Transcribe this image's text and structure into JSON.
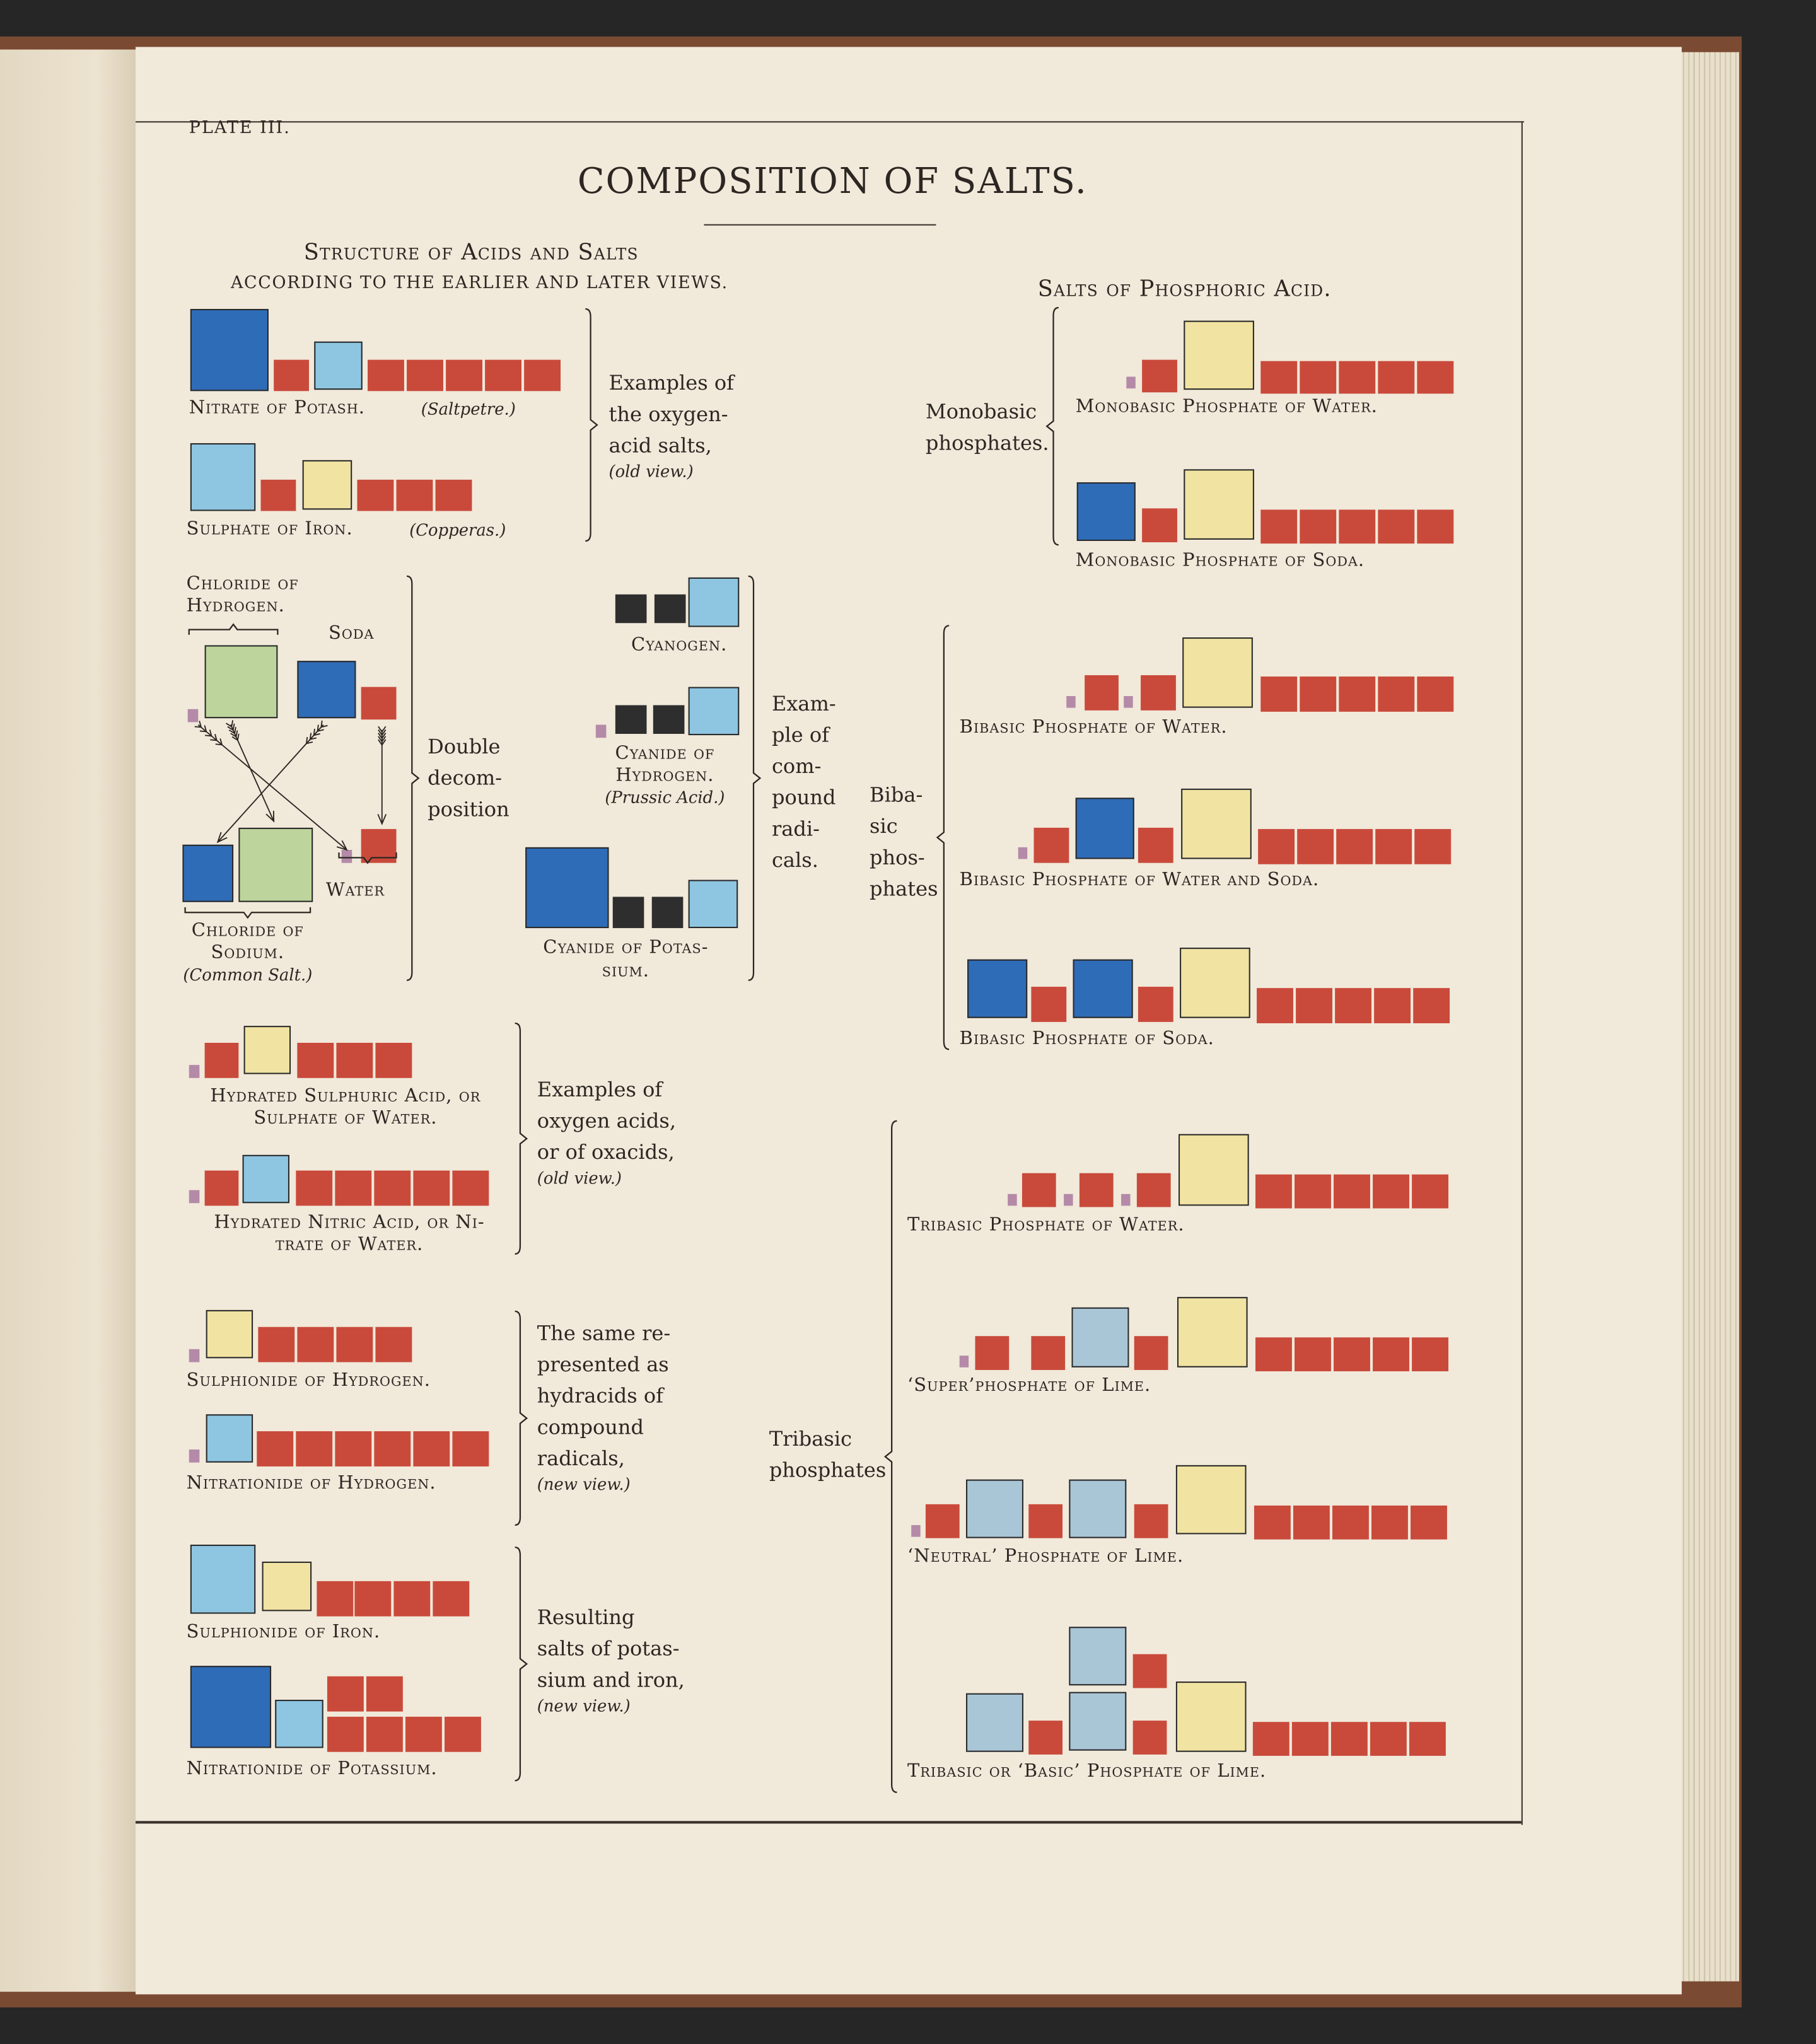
{
  "plate": "PLATE III.",
  "title": "COMPOSITION OF SALTS.",
  "left_header": {
    "line1": "Structure of Acids and Salts",
    "line2": "ACCORDING TO THE EARLIER AND LATER VIEWS."
  },
  "right_header": "Salts of Phosphoric Acid.",
  "colors": {
    "dark_blue": "#2f6cb8",
    "light_blue": "#8ec6e2",
    "red": "#c94a3b",
    "yellow": "#f1e3a2",
    "green": "#bdd59c",
    "black": "#2e2e2e",
    "purple": "#b48aa8",
    "grey_blue": "#a9c6d6"
  },
  "labels": {
    "nitrate_potash": "Nitrate of Potash.",
    "saltpetre": "(Saltpetre.)",
    "sulphate_iron": "Sulphate of Iron.",
    "copperas": "(Copperas.)",
    "oxygen_acid_salts": [
      "Examples of",
      "the oxygen-",
      "acid salts,",
      "(old view.)"
    ],
    "chloride_hydrogen": [
      "Chloride of",
      "Hydrogen."
    ],
    "soda": "Soda",
    "water": "Water",
    "chloride_sodium": [
      "Chloride of",
      "Sodium.",
      "(Common Salt.)"
    ],
    "double_decomposition": [
      "Double",
      "decom-",
      "position"
    ],
    "cyanogen": "Cyanogen.",
    "cyanide_hydrogen": [
      "Cyanide of",
      "Hydrogen.",
      "(Prussic Acid.)"
    ],
    "cyanide_potassium": [
      "Cyanide of Potas-",
      "sium."
    ],
    "compound_radicals": [
      "Exam-",
      "ple of",
      "com-",
      "pound",
      "radi-",
      "cals."
    ],
    "hydrated_sulphuric": [
      "Hydrated Sulphuric Acid, or",
      "Sulphate of Water."
    ],
    "hydrated_nitric": [
      "Hydrated Nitric Acid, or Ni-",
      "trate of Water."
    ],
    "oxacids": [
      "Examples of",
      "oxygen acids,",
      "or of oxacids,",
      "(old view.)"
    ],
    "sulphionide_hydrogen": "Sulphionide of Hydrogen.",
    "nitrationide_hydrogen": "Nitrationide of Hydrogen.",
    "hydracids": [
      "The same re-",
      "presented as",
      "hydracids of",
      "compound",
      "radicals,",
      "(new view.)"
    ],
    "sulphionide_iron": "Sulphionide of Iron.",
    "nitrationide_potassium": "Nitrationide of Potassium.",
    "resulting_salts": [
      "Resulting",
      "salts of potas-",
      "sium and iron,",
      "(new view.)"
    ],
    "monobasic": [
      "Monobasic",
      "phosphates."
    ],
    "mono_water": "Monobasic Phosphate of Water.",
    "mono_soda": "Monobasic Phosphate of Soda.",
    "bibasic": [
      "Biba-",
      "sic",
      "phos-",
      "phates"
    ],
    "bi_water": "Bibasic Phosphate of Water.",
    "bi_water_soda": "Bibasic Phosphate of Water and Soda.",
    "bi_soda": "Bibasic Phosphate of Soda.",
    "tribasic": [
      "Tribasic",
      "phosphates"
    ],
    "tri_water": "Tribasic Phosphate of Water.",
    "superphosphate": "‘Super’phosphate of Lime.",
    "neutral": "‘Neutral’ Phosphate of Lime.",
    "basic": "Tribasic or ‘Basic’ Phosphate of Lime."
  }
}
